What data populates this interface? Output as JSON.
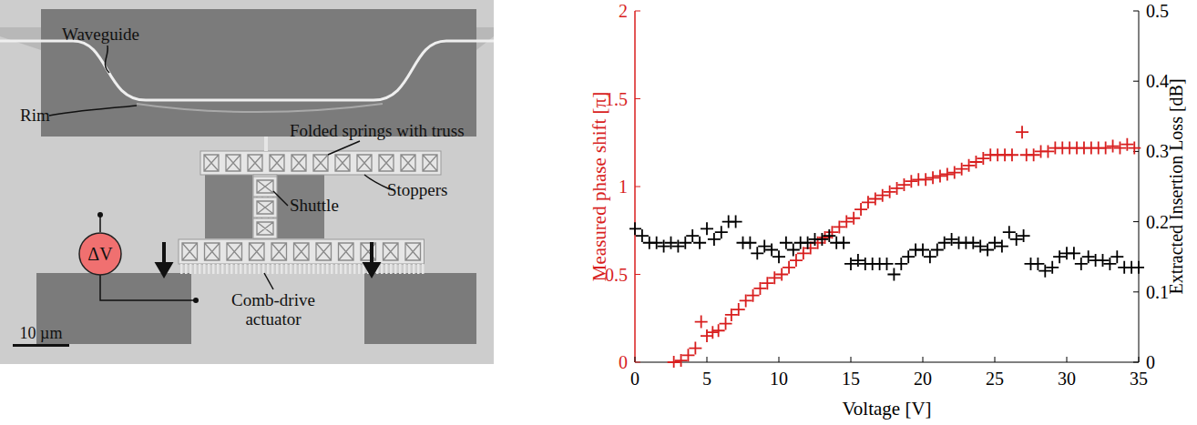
{
  "diagram": {
    "labels": [
      "Waveguide",
      "Rim",
      "Folded springs with truss",
      "Stoppers",
      "Shuttle",
      [
        "Comb-drive",
        "actuator"
      ]
    ],
    "source_label": "ΔV",
    "scale_bar": "10 µm"
  },
  "chart_data": {
    "type": "scatter",
    "x_label": "Voltage [V]",
    "y_label": "Measured phase shift [π]",
    "y2_label": "Extracted Insertion Loss [dB]",
    "xlim": [
      0,
      35
    ],
    "xticks": [
      0,
      5,
      10,
      15,
      20,
      25,
      30,
      35
    ],
    "ylim": [
      0,
      2
    ],
    "yticks": [
      0,
      0.5,
      1,
      1.5,
      2
    ],
    "y2lim": [
      0,
      0.5
    ],
    "y2ticks": [
      0,
      0.1,
      0.2,
      0.3,
      0.4,
      0.5
    ],
    "grid": false,
    "series": [
      {
        "name": "Measured phase shift",
        "color": "#d81e1e",
        "marker": "plus",
        "axis": "y",
        "x": [
          2.7,
          3.2,
          3.7,
          4.2,
          4.6,
          5.0,
          5.4,
          5.8,
          6.3,
          6.7,
          7.2,
          7.7,
          8.2,
          8.7,
          9.2,
          9.7,
          10.2,
          10.7,
          11.2,
          11.7,
          12.2,
          12.7,
          13.2,
          13.7,
          14.2,
          14.7,
          15.2,
          15.7,
          16.2,
          16.7,
          17.2,
          17.7,
          18.2,
          18.7,
          19.2,
          19.7,
          20.2,
          20.7,
          21.2,
          21.7,
          22.2,
          22.7,
          23.2,
          23.7,
          24.2,
          24.7,
          25.2,
          25.7,
          26.2,
          26.9,
          27.2,
          27.7,
          28.2,
          28.7,
          29.2,
          29.7,
          30.2,
          30.7,
          31.2,
          31.7,
          32.2,
          32.7,
          33.2,
          33.7,
          34.2,
          34.7
        ],
        "values": [
          0,
          0.01,
          0.04,
          0.08,
          0.23,
          0.15,
          0.17,
          0.18,
          0.22,
          0.27,
          0.3,
          0.35,
          0.38,
          0.42,
          0.45,
          0.48,
          0.5,
          0.54,
          0.58,
          0.62,
          0.65,
          0.68,
          0.71,
          0.74,
          0.77,
          0.8,
          0.82,
          0.87,
          0.91,
          0.93,
          0.95,
          0.97,
          0.99,
          1.01,
          1.03,
          1.04,
          1.04,
          1.05,
          1.06,
          1.07,
          1.08,
          1.1,
          1.12,
          1.14,
          1.16,
          1.18,
          1.18,
          1.18,
          1.18,
          1.31,
          1.18,
          1.18,
          1.2,
          1.2,
          1.22,
          1.22,
          1.22,
          1.22,
          1.22,
          1.22,
          1.22,
          1.22,
          1.23,
          1.22,
          1.24,
          1.22
        ]
      },
      {
        "name": "Extracted Insertion Loss",
        "color": "#000000",
        "marker": "plus",
        "axis": "y2",
        "x": [
          0,
          0.5,
          1,
          1.5,
          2,
          2.5,
          3,
          3.5,
          4,
          4.5,
          5,
          5.5,
          6,
          6.5,
          7,
          7.5,
          8,
          8.5,
          9,
          9.5,
          10,
          10.5,
          11,
          11.5,
          12,
          12.5,
          13,
          13.5,
          14,
          14.5,
          15,
          15.5,
          16,
          16.5,
          17,
          17.5,
          18,
          18.5,
          19,
          19.5,
          20,
          20.5,
          21,
          21.5,
          22,
          22.5,
          23,
          23.5,
          24,
          24.5,
          25,
          25.5,
          26,
          26.5,
          27,
          27.5,
          28,
          28.5,
          29,
          29.5,
          30,
          30.5,
          31,
          31.5,
          32,
          32.5,
          33,
          33.5,
          34,
          34.5,
          35
        ],
        "values": [
          0.19,
          0.18,
          0.17,
          0.17,
          0.165,
          0.17,
          0.165,
          0.17,
          0.18,
          0.17,
          0.19,
          0.175,
          0.185,
          0.2,
          0.2,
          0.17,
          0.17,
          0.155,
          0.165,
          0.16,
          0.15,
          0.17,
          0.16,
          0.17,
          0.17,
          0.175,
          0.175,
          0.18,
          0.17,
          0.17,
          0.14,
          0.145,
          0.14,
          0.14,
          0.14,
          0.14,
          0.125,
          0.14,
          0.15,
          0.16,
          0.16,
          0.15,
          0.16,
          0.17,
          0.175,
          0.17,
          0.17,
          0.17,
          0.165,
          0.16,
          0.17,
          0.165,
          0.185,
          0.175,
          0.18,
          0.14,
          0.14,
          0.13,
          0.135,
          0.15,
          0.155,
          0.155,
          0.14,
          0.15,
          0.145,
          0.145,
          0.14,
          0.15,
          0.135,
          0.135,
          0.135
        ]
      }
    ]
  }
}
